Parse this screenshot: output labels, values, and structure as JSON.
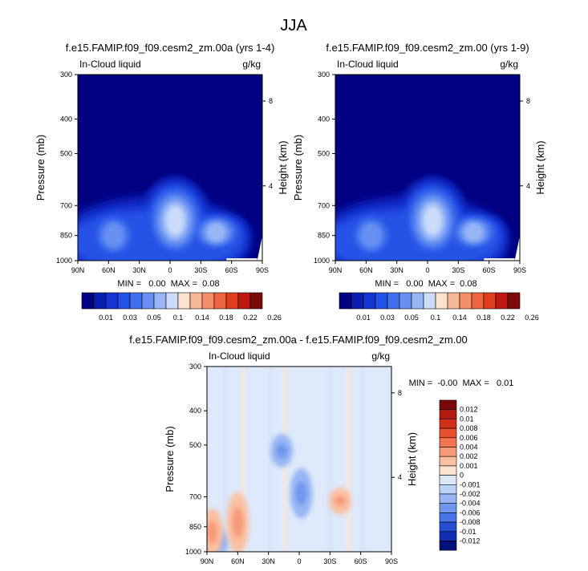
{
  "figure": {
    "title": "JJA",
    "panel_a": {
      "title": "f.e15.FAMIP.f09_f09.cesm2_zm.00a (yrs 1-4)",
      "variable": "In-Cloud liquid",
      "units": "g/kg",
      "stats": "MIN =   0.00  MAX =  0.08"
    },
    "panel_b": {
      "title": "f.e15.FAMIP.f09_f09.cesm2_zm.00 (yrs 1-9)",
      "variable": "In-Cloud liquid",
      "units": "g/kg",
      "stats": "MIN =   0.00  MAX =  0.08"
    },
    "panel_diff": {
      "title": "f.e15.FAMIP.f09_f09.cesm2_zm.00a - f.e15.FAMIP.f09_f09.cesm2_zm.00",
      "variable": "In-Cloud liquid",
      "units": "g/kg",
      "stats": "MIN =  -0.00  MAX =   0.01"
    }
  },
  "chart_data": [
    {
      "type": "heatmap",
      "panel": "a",
      "xlabel": "",
      "ylabel": "Pressure (mb)",
      "y2label": "Height (km)",
      "x_ticks": [
        "90N",
        "60N",
        "30N",
        "0",
        "30S",
        "60S",
        "90S"
      ],
      "y_ticks": [
        300,
        400,
        500,
        700,
        850,
        1000
      ],
      "y2_ticks": [
        4,
        8
      ],
      "y_scale": "log",
      "ylim": [
        1000,
        300
      ],
      "colorbar_levels": [
        "0.01",
        "0.03",
        "0.05",
        "0.1",
        "0.14",
        "0.18",
        "0.22",
        "0.26"
      ],
      "colorbar_colors": [
        "#000080",
        "#0A1FB0",
        "#1535D2",
        "#2552E6",
        "#4070EE",
        "#6790F2",
        "#98B6F6",
        "#CCDCFA",
        "#FDE2CF",
        "#F8B896",
        "#F48F68",
        "#EE6440",
        "#E03C20",
        "#C01810",
        "#7A0A08"
      ],
      "features": [
        {
          "name": "tropical maximum",
          "lat": -5,
          "p_top": 640,
          "p_bottom": 930,
          "level": 7
        },
        {
          "name": "southern midlatitude maximum",
          "lat": -45,
          "p_top": 770,
          "p_bottom": 900,
          "level": 6
        },
        {
          "name": "northern midlatitude maximum",
          "lat": 55,
          "p_top": 760,
          "p_bottom": 950,
          "level": 5
        }
      ]
    },
    {
      "type": "heatmap",
      "panel": "b",
      "xlabel": "",
      "ylabel": "Pressure (mb)",
      "y2label": "Height (km)",
      "x_ticks": [
        "90N",
        "60N",
        "30N",
        "0",
        "30S",
        "60S",
        "90S"
      ],
      "y_ticks": [
        300,
        400,
        500,
        700,
        850,
        1000
      ],
      "y2_ticks": [
        4,
        8
      ],
      "y_scale": "log",
      "ylim": [
        1000,
        300
      ],
      "colorbar_levels": [
        "0.01",
        "0.03",
        "0.05",
        "0.1",
        "0.14",
        "0.18",
        "0.22",
        "0.26"
      ],
      "colorbar_colors": [
        "#000080",
        "#0A1FB0",
        "#1535D2",
        "#2552E6",
        "#4070EE",
        "#6790F2",
        "#98B6F6",
        "#CCDCFA",
        "#FDE2CF",
        "#F8B896",
        "#F48F68",
        "#EE6440",
        "#E03C20",
        "#C01810",
        "#7A0A08"
      ],
      "features": [
        {
          "name": "tropical maximum",
          "lat": -5,
          "p_top": 640,
          "p_bottom": 930,
          "level": 7
        },
        {
          "name": "southern midlatitude maximum",
          "lat": -45,
          "p_top": 770,
          "p_bottom": 900,
          "level": 6
        },
        {
          "name": "northern midlatitude maximum",
          "lat": 55,
          "p_top": 760,
          "p_bottom": 950,
          "level": 5
        }
      ]
    },
    {
      "type": "heatmap",
      "panel": "difference",
      "xlabel": "",
      "ylabel": "Pressure (mb)",
      "y2label": "Height (km)",
      "x_ticks": [
        "90N",
        "60N",
        "30N",
        "0",
        "30S",
        "60S",
        "90S"
      ],
      "y_ticks": [
        300,
        400,
        500,
        700,
        850,
        1000
      ],
      "y2_ticks": [
        4,
        8
      ],
      "y_scale": "log",
      "ylim": [
        1000,
        300
      ],
      "colorbar_levels": [
        "0.012",
        "0.01",
        "0.008",
        "0.006",
        "0.004",
        "0.002",
        "0.001",
        "0",
        "-0.001",
        "-0.002",
        "-0.004",
        "-0.006",
        "-0.008",
        "-0.01",
        "-0.012"
      ],
      "colorbar_colors": [
        "#7A0A08",
        "#B01810",
        "#D22E18",
        "#E85030",
        "#F27450",
        "#F69A78",
        "#FAC0A2",
        "#FCE2D0",
        "#DCE8FA",
        "#BCD2F6",
        "#98B6F4",
        "#7096EE",
        "#4A74E6",
        "#2650D4",
        "#102EB0",
        "#00127A"
      ],
      "features": [
        {
          "name": "negative anomaly",
          "lat": -2,
          "p_top": 600,
          "p_bottom": 780,
          "sign": "negative"
        },
        {
          "name": "negative anomaly",
          "lat": 17,
          "p_top": 480,
          "p_bottom": 560,
          "sign": "negative"
        },
        {
          "name": "negative anomaly",
          "lat": 80,
          "p_top": 880,
          "p_bottom": 1000,
          "sign": "negative"
        },
        {
          "name": "positive anomaly",
          "lat": 85,
          "p_top": 780,
          "p_bottom": 1000,
          "sign": "positive"
        },
        {
          "name": "positive anomaly",
          "lat": 60,
          "p_top": 700,
          "p_bottom": 980,
          "sign": "positive"
        },
        {
          "name": "positive anomaly",
          "lat": -40,
          "p_top": 680,
          "p_bottom": 760,
          "sign": "positive"
        }
      ]
    }
  ]
}
